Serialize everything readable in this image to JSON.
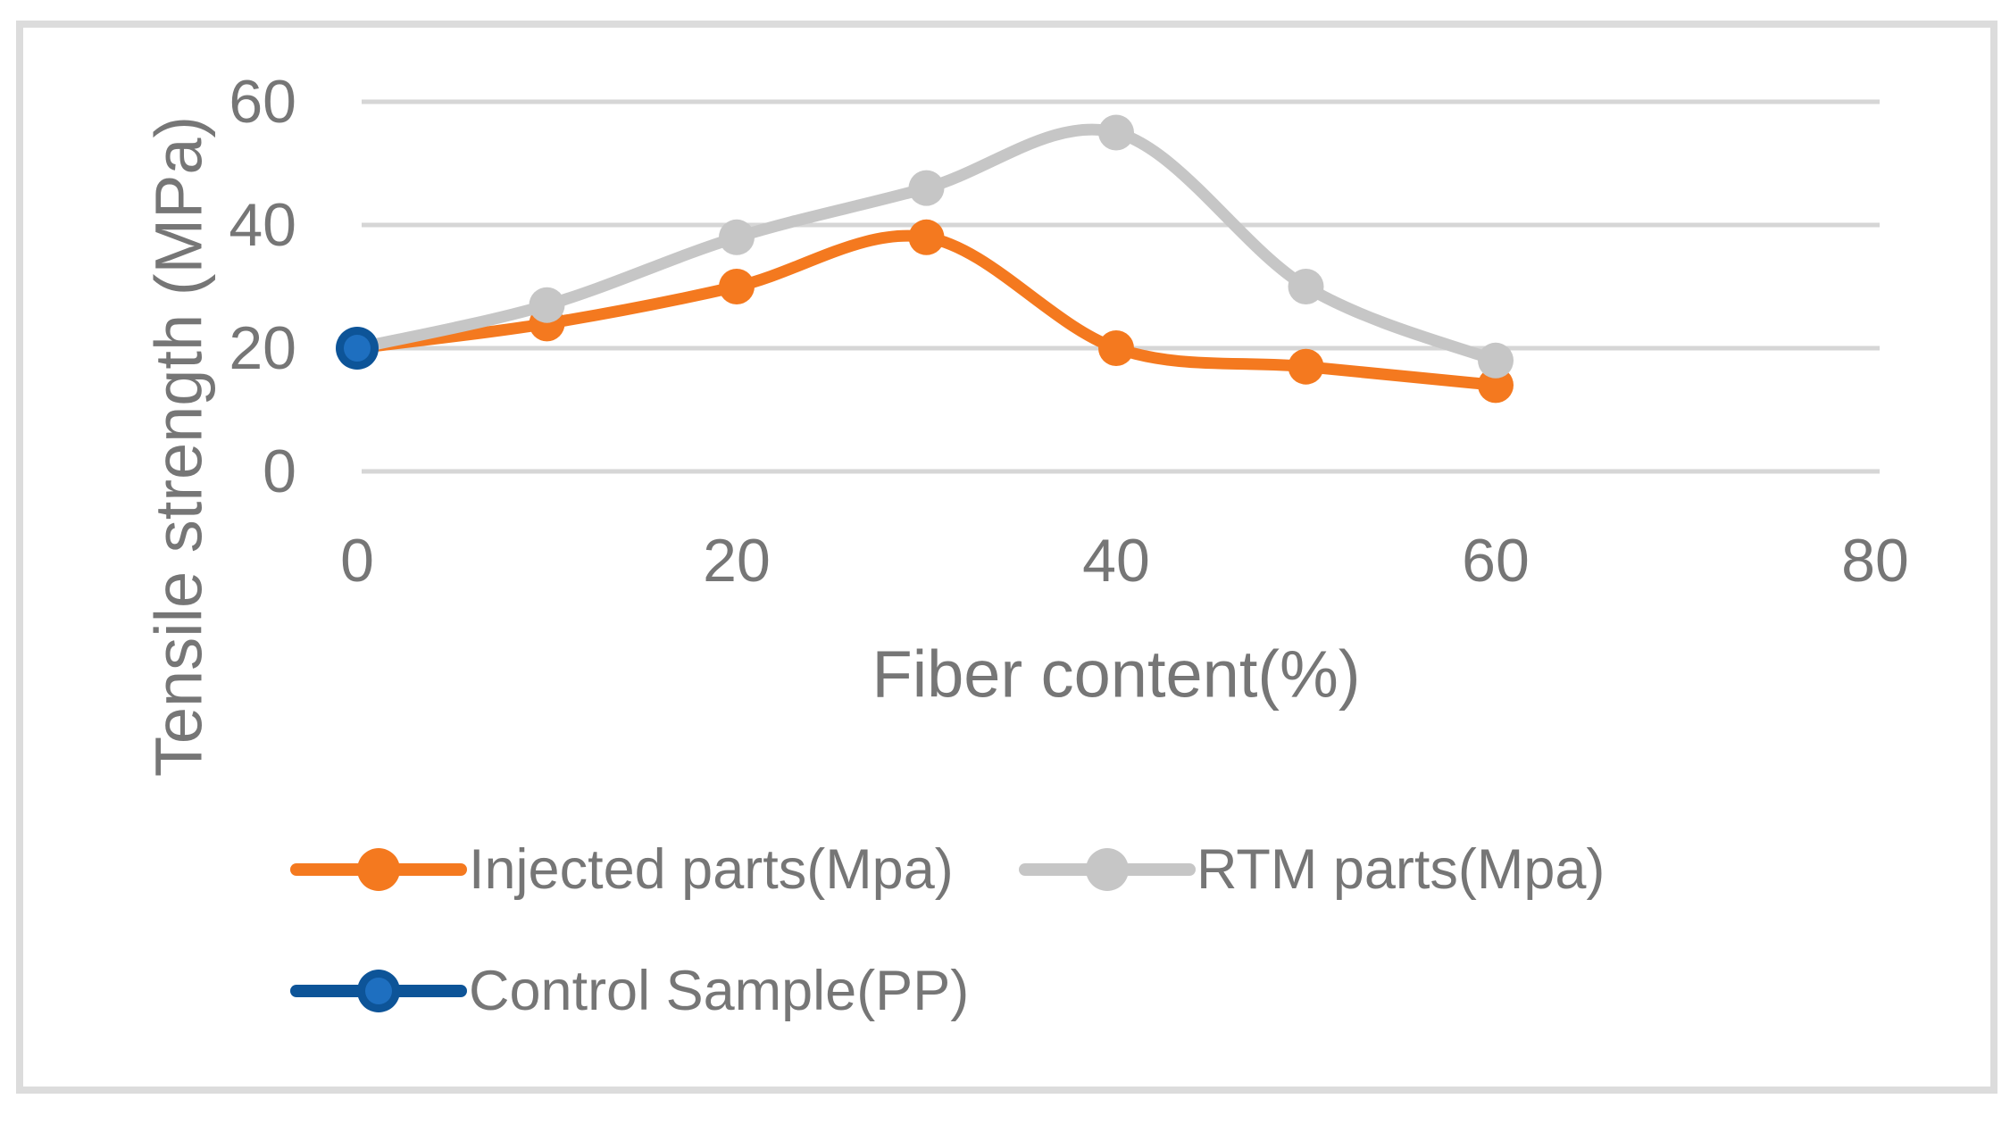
{
  "figure": {
    "background": "#ffffff",
    "frame_color": "#DCDCDC"
  },
  "chart_data": {
    "type": "line",
    "title": "",
    "xlabel": "Fiber content(%)",
    "ylabel": "Tensile strength (MPa)",
    "x": [
      0,
      10,
      20,
      30,
      40,
      50,
      60
    ],
    "series": [
      {
        "name": "Injected parts(Mpa)",
        "color": "#F4791F",
        "values": [
          20,
          24,
          30,
          38,
          20,
          17,
          14
        ],
        "marker": "circle",
        "smooth": true
      },
      {
        "name": "RTM parts(Mpa)",
        "color": "#C6C6C6",
        "values": [
          20,
          27,
          38,
          46,
          55,
          30,
          18
        ],
        "marker": "circle",
        "smooth": true
      },
      {
        "name": "Control Sample(PP)",
        "color": "#0D5498",
        "marker_fill": "#1E6FC0",
        "points": [
          {
            "x": 0,
            "y": 20
          }
        ],
        "marker": "ring-circle"
      }
    ],
    "xlim": [
      0,
      80
    ],
    "ylim": [
      0,
      60
    ],
    "xticks": [
      0,
      20,
      40,
      60,
      80
    ],
    "yticks": [
      0,
      20,
      40,
      60
    ],
    "grid": "horizontal",
    "gridline_color": "#D6D6D6",
    "axis_text_color": "#767676",
    "legend_position": "bottom-left",
    "legend_entries": [
      "Injected parts(Mpa)",
      "RTM parts(Mpa)",
      "Control Sample(PP)"
    ]
  }
}
